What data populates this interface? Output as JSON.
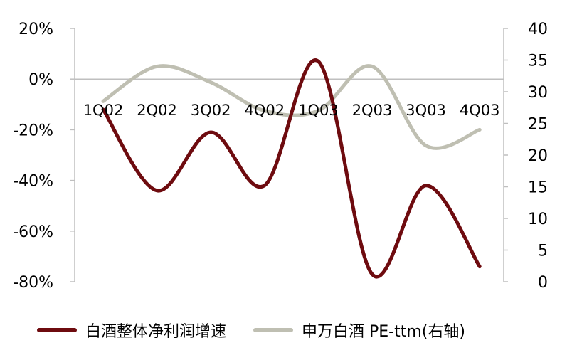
{
  "chart_data": {
    "type": "line",
    "categories": [
      "1Q02",
      "2Q02",
      "3Q02",
      "4Q02",
      "1Q03",
      "2Q03",
      "3Q03",
      "4Q03"
    ],
    "left_axis": {
      "ylim": [
        -80,
        20
      ],
      "ticks": [
        20,
        0,
        -20,
        -40,
        -60,
        -80
      ],
      "tick_labels": [
        "20%",
        "0%",
        "-20%",
        "-40%",
        "-60%",
        "-80%"
      ]
    },
    "right_axis": {
      "ylim": [
        0,
        40
      ],
      "ticks": [
        40,
        35,
        30,
        25,
        20,
        15,
        10,
        5,
        0
      ],
      "tick_labels": [
        "40",
        "35",
        "30",
        "25",
        "20",
        "15",
        "10",
        "5",
        "0"
      ]
    },
    "series": [
      {
        "name": "白酒整体净利润增速",
        "axis": "left",
        "color": "#6e0b0f",
        "values": [
          -12,
          -44,
          -21,
          -42,
          7,
          -77,
          -42,
          -74
        ]
      },
      {
        "name": "申万白酒 PE-ttm(右轴)",
        "axis": "right",
        "color": "#bfbfb2",
        "values": [
          28.5,
          34,
          31.5,
          27,
          27,
          34,
          21.5,
          24
        ]
      }
    ]
  }
}
